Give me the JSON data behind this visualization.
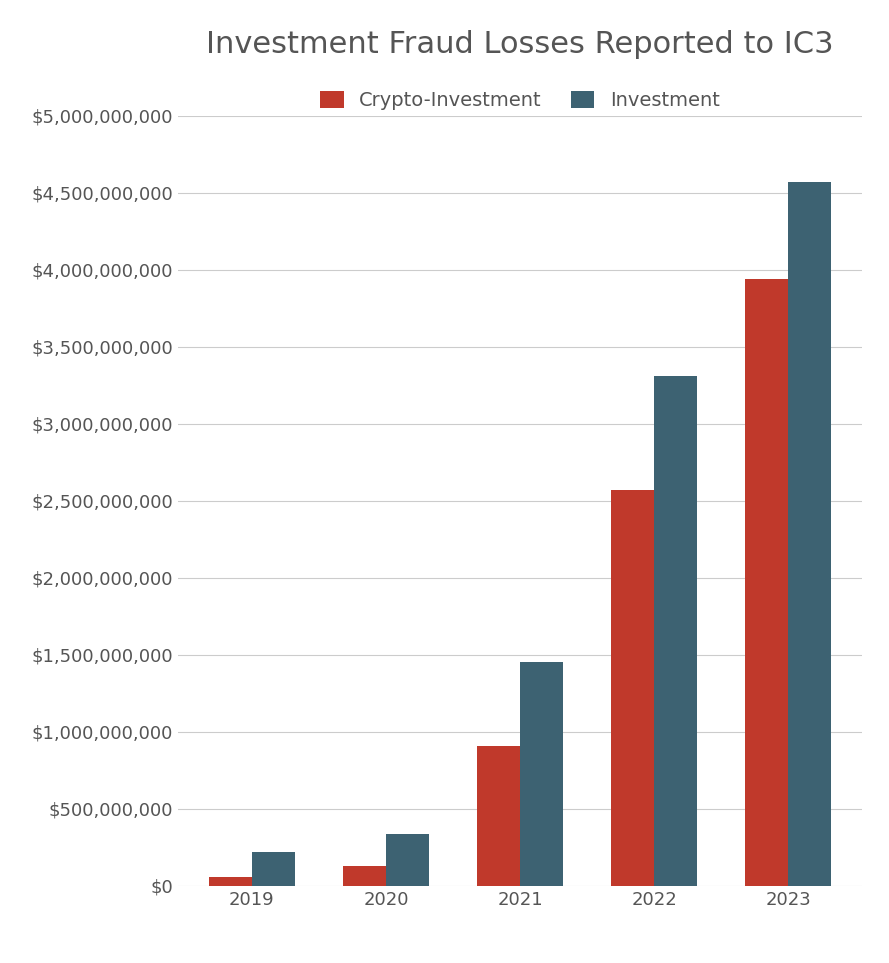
{
  "title": "Investment Fraud Losses Reported to IC3",
  "categories": [
    "2019",
    "2020",
    "2021",
    "2022",
    "2023"
  ],
  "crypto_values": [
    57000000,
    130000000,
    907000000,
    2570000000,
    3940000000
  ],
  "investment_values": [
    222000000,
    336000000,
    1455000000,
    3310000000,
    4570000000
  ],
  "crypto_color": "#C0392B",
  "investment_color": "#3D6272",
  "background_color": "#FFFFFF",
  "grid_color": "#CCCCCC",
  "ylim": [
    0,
    5000000000
  ],
  "yticks": [
    0,
    500000000,
    1000000000,
    1500000000,
    2000000000,
    2500000000,
    3000000000,
    3500000000,
    4000000000,
    4500000000,
    5000000000
  ],
  "legend_labels": [
    "Crypto-Investment",
    "Investment"
  ],
  "bar_width": 0.32,
  "title_fontsize": 22,
  "tick_fontsize": 13,
  "legend_fontsize": 14,
  "text_color": "#555555"
}
